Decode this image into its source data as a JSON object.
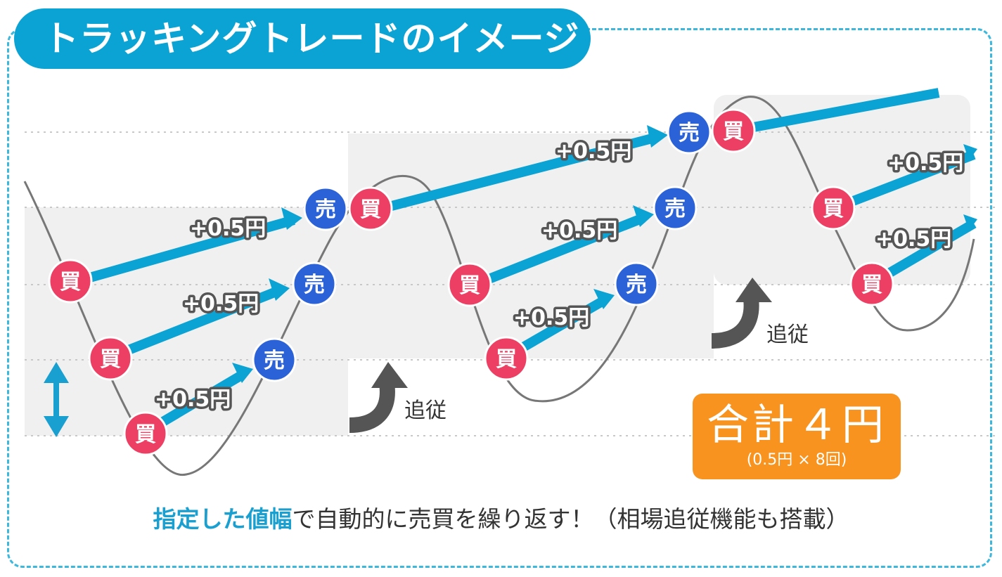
{
  "title": "トラッキングトレードのイメージ",
  "labels": {
    "buy": "買",
    "sell": "売",
    "profit": "+0.5円",
    "follow": "追従"
  },
  "total": {
    "main": "合計４円",
    "sub": "(0.5円 × 8回)"
  },
  "caption": {
    "highlight1": "指定した",
    "highlight2": "値幅",
    "rest": "で自動的に売買を繰り返す！（相場追従機能も搭載）"
  },
  "colors": {
    "buy": "#ec3f63",
    "sell": "#2c62d8",
    "arrow": "#0aa3d4",
    "accent_total": "#f7931e",
    "follow_arrow": "#555555"
  },
  "icons": [
    "double-arrow-icon",
    "follow-arrow-icon"
  ]
}
